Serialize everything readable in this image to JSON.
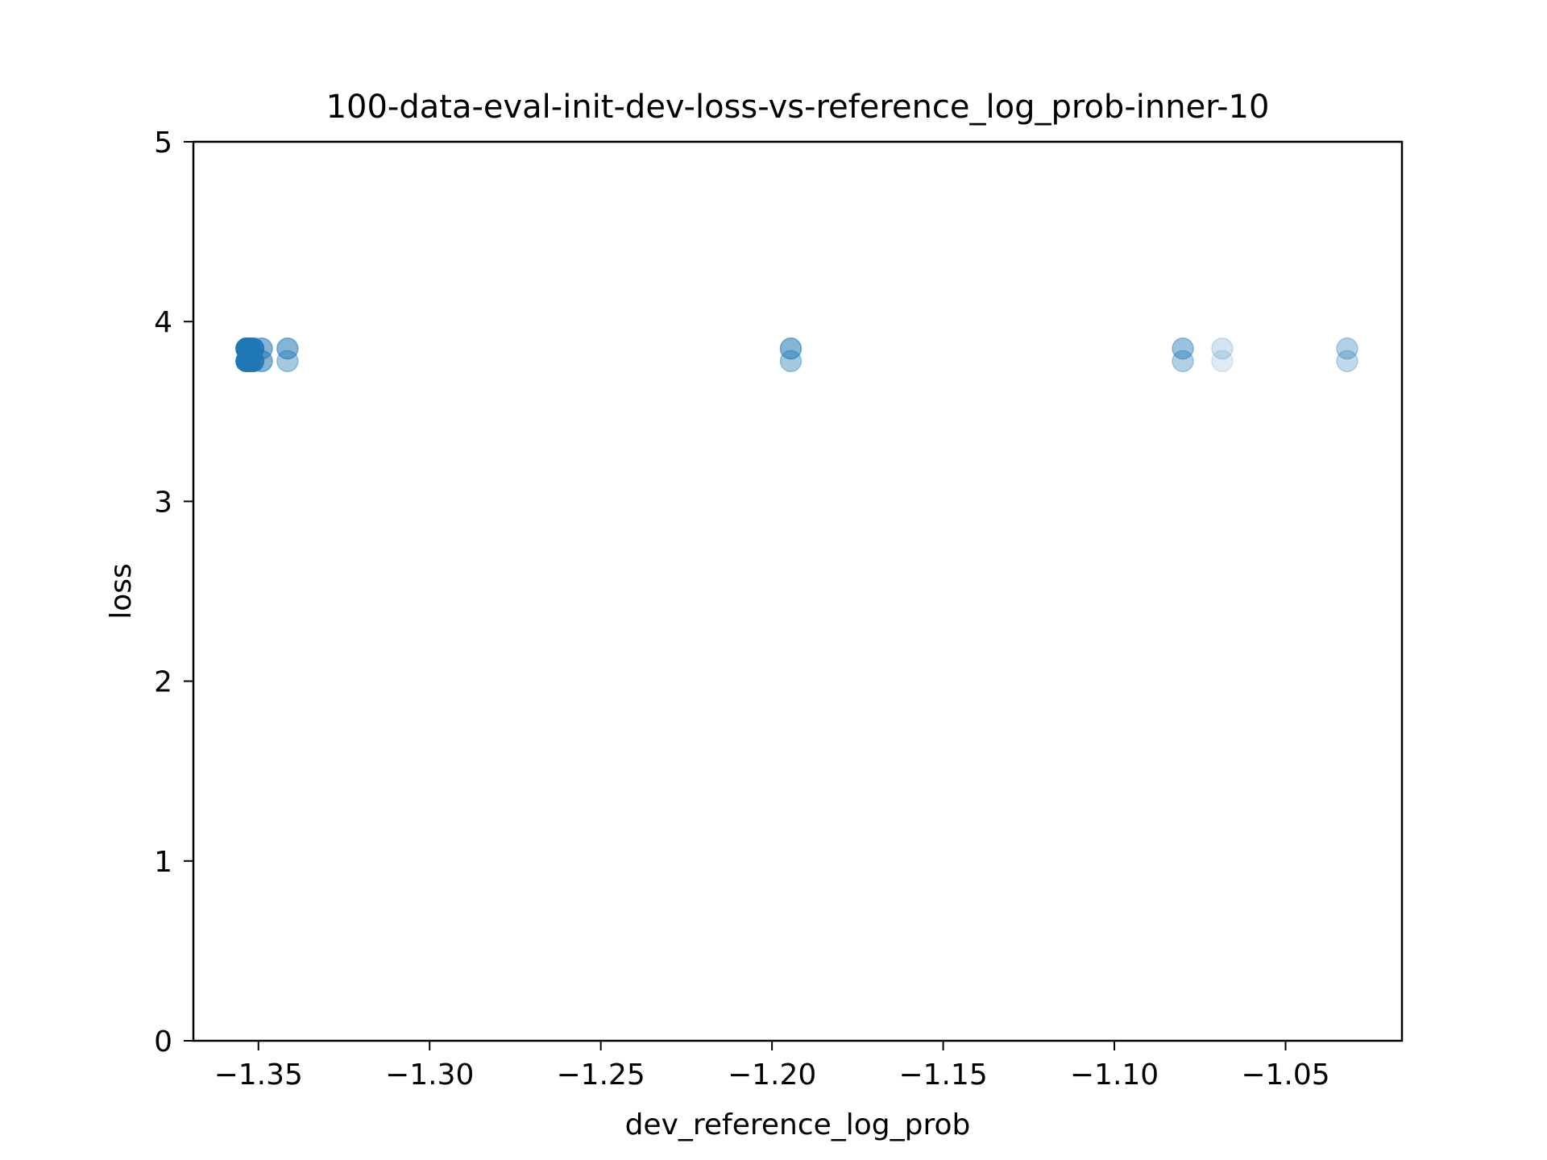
{
  "chart_data": {
    "type": "scatter",
    "title": "100-data-eval-init-dev-loss-vs-reference_log_prob-inner-10",
    "xlabel": "dev_reference_log_prob",
    "ylabel": "loss",
    "xlim": [
      -1.369,
      -1.016
    ],
    "ylim": [
      0,
      5
    ],
    "x_ticks": [
      -1.35,
      -1.3,
      -1.25,
      -1.2,
      -1.15,
      -1.1,
      -1.05
    ],
    "x_tick_labels": [
      "−1.35",
      "−1.30",
      "−1.25",
      "−1.20",
      "−1.15",
      "−1.10",
      "−1.05"
    ],
    "y_ticks": [
      0,
      1,
      2,
      3,
      4,
      5
    ],
    "y_tick_labels": [
      "0",
      "1",
      "2",
      "3",
      "4",
      "5"
    ],
    "grid": false,
    "marker_color": "#1f77b4",
    "points": [
      {
        "x": -1.3535,
        "y": 3.85,
        "alpha": 1.0
      },
      {
        "x": -1.3535,
        "y": 3.78,
        "alpha": 1.0
      },
      {
        "x": -1.3525,
        "y": 3.85,
        "alpha": 1.0
      },
      {
        "x": -1.3525,
        "y": 3.78,
        "alpha": 1.0
      },
      {
        "x": -1.3515,
        "y": 3.85,
        "alpha": 0.9
      },
      {
        "x": -1.3515,
        "y": 3.78,
        "alpha": 0.9
      },
      {
        "x": -1.349,
        "y": 3.85,
        "alpha": 0.55
      },
      {
        "x": -1.349,
        "y": 3.78,
        "alpha": 0.55
      },
      {
        "x": -1.3415,
        "y": 3.85,
        "alpha": 0.55
      },
      {
        "x": -1.3415,
        "y": 3.78,
        "alpha": 0.4
      },
      {
        "x": -1.1945,
        "y": 3.85,
        "alpha": 0.55
      },
      {
        "x": -1.1945,
        "y": 3.78,
        "alpha": 0.4
      },
      {
        "x": -1.08,
        "y": 3.85,
        "alpha": 0.45
      },
      {
        "x": -1.08,
        "y": 3.78,
        "alpha": 0.35
      },
      {
        "x": -1.0685,
        "y": 3.85,
        "alpha": 0.2
      },
      {
        "x": -1.0685,
        "y": 3.78,
        "alpha": 0.15
      },
      {
        "x": -1.032,
        "y": 3.85,
        "alpha": 0.35
      },
      {
        "x": -1.032,
        "y": 3.78,
        "alpha": 0.28
      }
    ]
  }
}
